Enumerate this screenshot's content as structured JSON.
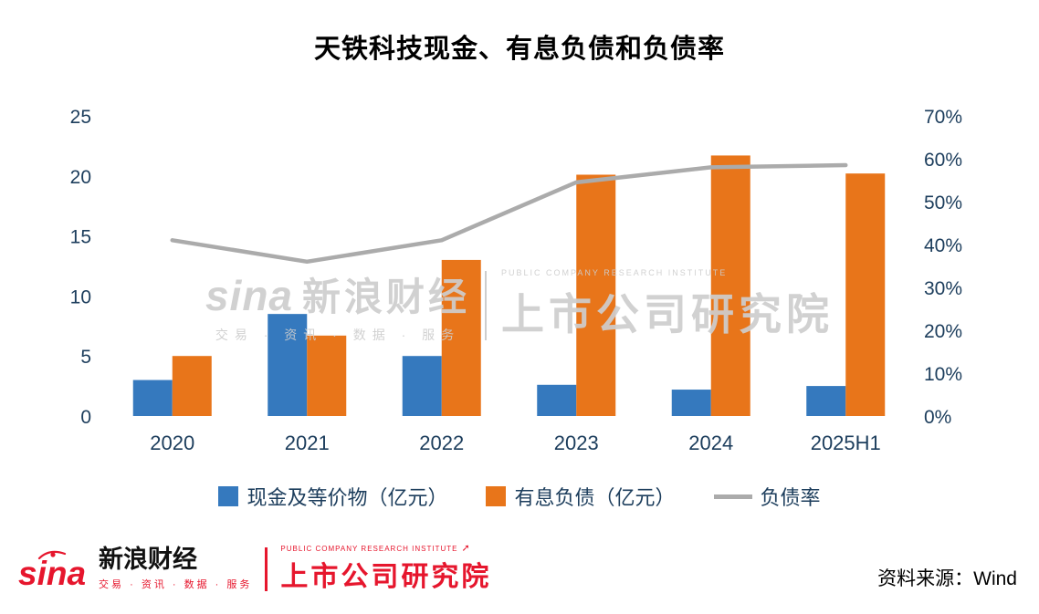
{
  "title": "天铁科技现金、有息负债和负债率",
  "chart_data": {
    "type": "bar+line",
    "title": "天铁科技现金、有息负债和负债率",
    "categories": [
      "2020",
      "2021",
      "2022",
      "2023",
      "2024",
      "2025H1"
    ],
    "series": [
      {
        "name": "现金及等价物（亿元）",
        "type": "bar",
        "axis": "left",
        "color": "#3579be",
        "values": [
          3.0,
          8.5,
          5.0,
          2.6,
          2.2,
          2.5
        ]
      },
      {
        "name": "有息负债（亿元）",
        "type": "bar",
        "axis": "left",
        "color": "#e8751a",
        "values": [
          5.0,
          6.7,
          13.0,
          20.1,
          21.7,
          20.2
        ]
      },
      {
        "name": "负债率",
        "type": "line",
        "axis": "right",
        "color": "#ababab",
        "values": [
          41,
          36,
          41,
          54.5,
          58,
          58.5
        ]
      }
    ],
    "left_axis": {
      "min": 0,
      "max": 25,
      "ticks": [
        0,
        5,
        10,
        15,
        20,
        25
      ]
    },
    "right_axis": {
      "min": 0,
      "max": 70,
      "ticks": [
        "0%",
        "10%",
        "20%",
        "30%",
        "40%",
        "50%",
        "60%",
        "70%"
      ]
    },
    "grid": false,
    "legend_position": "bottom"
  },
  "watermark": {
    "sina": "sina",
    "brand": "新浪财经",
    "tagline": "交易 · 资讯 · 数据 · 服务",
    "institute_en": "PUBLIC COMPANY RESEARCH INSTITUTE",
    "institute": "上市公司研究院"
  },
  "footer": {
    "sina": "sina",
    "brand": "新浪财经",
    "tagline": "交易 · 资讯 · 数据 · 服务",
    "institute_en": "PUBLIC COMPANY RESEARCH INSTITUTE",
    "institute": "上市公司研究院",
    "source": "资料来源：Wind"
  },
  "colors": {
    "cash_bar": "#3579be",
    "debt_bar": "#e8751a",
    "ratio_line": "#ababab",
    "axis_text": "#1c3d5c",
    "sina_red": "#e6162d"
  }
}
